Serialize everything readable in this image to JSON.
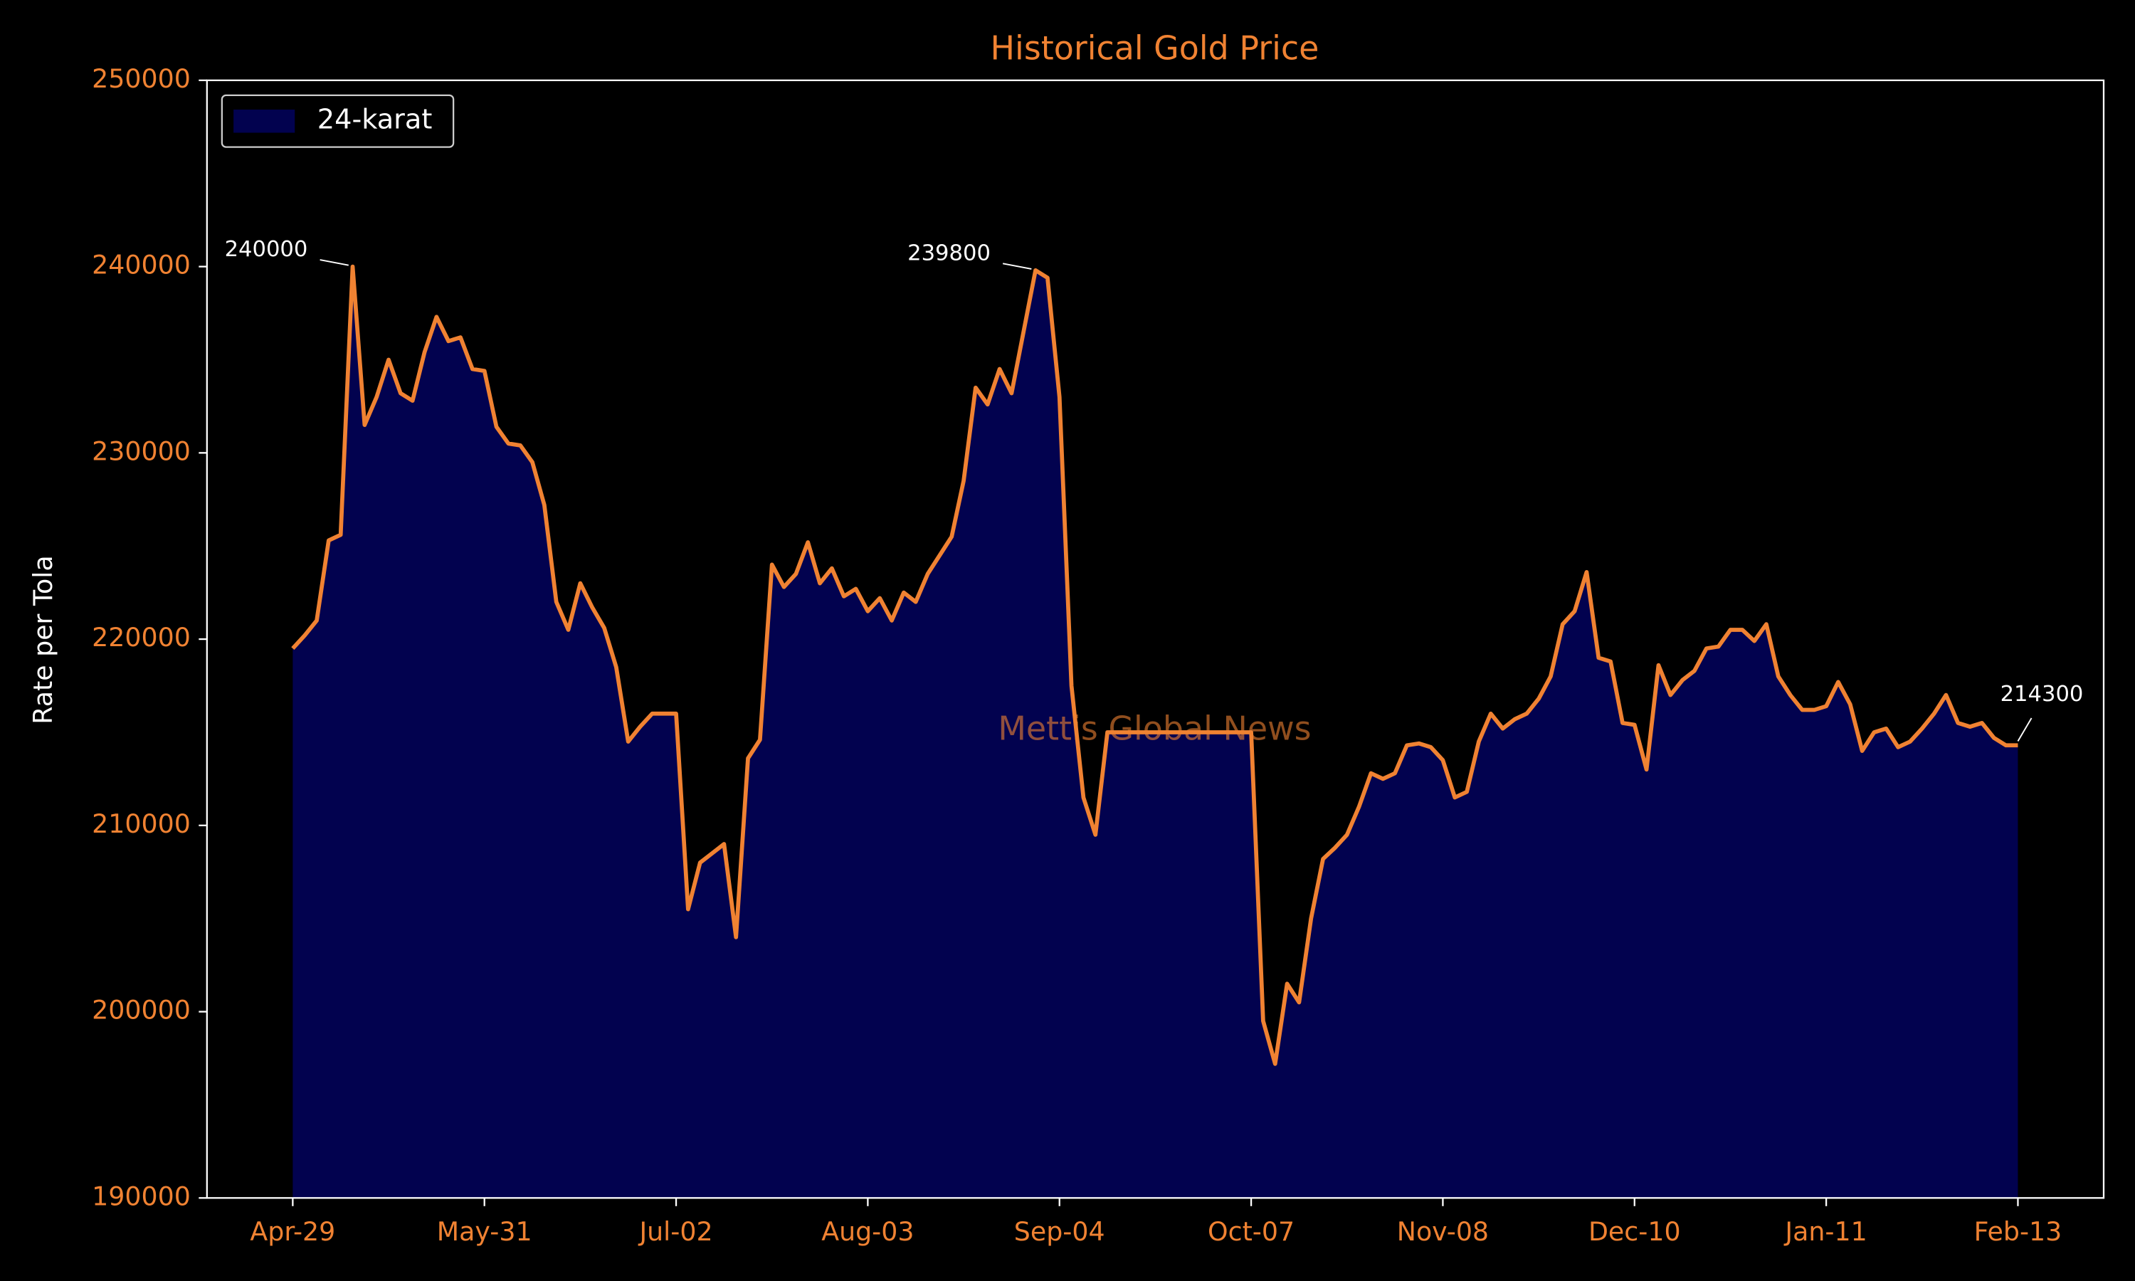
{
  "chart_data": {
    "type": "area",
    "title": "Historical Gold Price",
    "ylabel": "Rate per Tola",
    "watermark": "Mettis Global News",
    "categories": [
      "Apr-29",
      null,
      null,
      null,
      null,
      null,
      null,
      null,
      null,
      null,
      null,
      null,
      null,
      null,
      null,
      null,
      "May-31",
      null,
      null,
      null,
      null,
      null,
      null,
      null,
      null,
      null,
      null,
      null,
      null,
      null,
      null,
      null,
      "Jul-02",
      null,
      null,
      null,
      null,
      null,
      null,
      null,
      null,
      null,
      null,
      null,
      null,
      null,
      null,
      null,
      "Aug-03",
      null,
      null,
      null,
      null,
      null,
      null,
      null,
      null,
      null,
      null,
      null,
      null,
      null,
      null,
      null,
      "Sep-04",
      null,
      null,
      null,
      null,
      null,
      null,
      null,
      null,
      null,
      null,
      null,
      null,
      null,
      null,
      null,
      "Oct-07",
      null,
      null,
      null,
      null,
      null,
      null,
      null,
      null,
      null,
      null,
      null,
      null,
      null,
      null,
      null,
      "Nov-08",
      null,
      null,
      null,
      null,
      null,
      null,
      null,
      null,
      null,
      null,
      null,
      null,
      null,
      null,
      null,
      "Dec-10",
      null,
      null,
      null,
      null,
      null,
      null,
      null,
      null,
      null,
      null,
      null,
      null,
      null,
      null,
      null,
      "Jan-11",
      null,
      null,
      null,
      null,
      null,
      null,
      null,
      null,
      null,
      null,
      null,
      null,
      null,
      null,
      null,
      "Feb-13"
    ],
    "series": [
      {
        "name": "24-karat",
        "color": "#f08232",
        "fill": "#02024f",
        "values": [
          219500,
          220200,
          221000,
          225300,
          225600,
          240000,
          231500,
          233000,
          235000,
          233200,
          232800,
          235400,
          237300,
          236000,
          236200,
          234500,
          234400,
          231400,
          230500,
          230400,
          229500,
          227200,
          222000,
          220500,
          223000,
          221700,
          220600,
          218500,
          214500,
          215300,
          216000,
          216000,
          216000,
          205500,
          208000,
          208500,
          209000,
          204000,
          213600,
          214600,
          224000,
          222800,
          223500,
          225200,
          223000,
          223800,
          222300,
          222700,
          221500,
          222200,
          221000,
          222500,
          222000,
          223500,
          224500,
          225500,
          228500,
          233500,
          232600,
          234500,
          233200,
          236500,
          239800,
          239400,
          233000,
          217500,
          211500,
          209500,
          215000,
          215000,
          215000,
          215000,
          215000,
          215000,
          215000,
          215000,
          215000,
          215000,
          215000,
          215000,
          215000,
          199500,
          197200,
          201500,
          200500,
          205000,
          208200,
          208800,
          209500,
          211000,
          212800,
          212500,
          212800,
          214300,
          214400,
          214200,
          213500,
          211500,
          211800,
          214500,
          216000,
          215200,
          215700,
          216000,
          216800,
          218000,
          220800,
          221500,
          223600,
          219000,
          218800,
          215500,
          215400,
          213000,
          218600,
          217000,
          217800,
          218300,
          219500,
          219600,
          220500,
          220500,
          219900,
          220800,
          218000,
          217000,
          216200,
          216200,
          216400,
          217700,
          216500,
          214000,
          215000,
          215200,
          214200,
          214500,
          215200,
          216000,
          217000,
          215500,
          215300,
          215500,
          214700,
          214300,
          214300
        ]
      }
    ],
    "annotations": [
      240000,
      239800,
      214300
    ],
    "ylim": [
      190000,
      250000
    ],
    "yticks": [
      190000,
      200000,
      210000,
      220000,
      230000,
      240000,
      250000
    ],
    "legend": "upper left",
    "grid": false
  }
}
